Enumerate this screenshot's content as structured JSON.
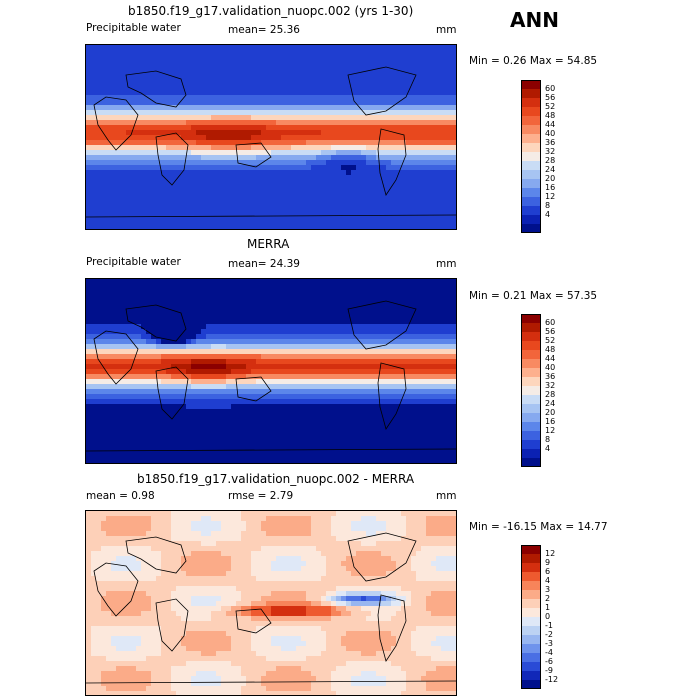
{
  "season": "ANN",
  "panels": [
    {
      "title": "b1850.f19_g17.validation_nuopc.002 (yrs 1-30)",
      "left_label": "Precipitable water",
      "center_label": "mean=   25.36",
      "right_label": "mm",
      "minmax": "Min =    0.26  Max =   54.85",
      "colorbar": {
        "labels": [
          "60",
          "56",
          "52",
          "48",
          "44",
          "40",
          "36",
          "32",
          "28",
          "24",
          "20",
          "16",
          "12",
          "8",
          "4"
        ],
        "colors": [
          "#8b0000",
          "#b01a00",
          "#d42f0f",
          "#e8481e",
          "#f2653b",
          "#f88a62",
          "#fdb08e",
          "#fdd6bd",
          "#f5ece6",
          "#c9dcf5",
          "#a7c4f2",
          "#86a9ef",
          "#5c86ea",
          "#3c62e0",
          "#1f3ed0",
          "#0b21b3",
          "#00108c"
        ]
      },
      "field_type": "model"
    },
    {
      "title": "MERRA",
      "left_label": "Precipitable water",
      "center_label": "mean=   24.39",
      "right_label": "mm",
      "minmax": "Min =    0.21  Max =   57.35",
      "colorbar": {
        "labels": [
          "60",
          "56",
          "52",
          "48",
          "44",
          "40",
          "36",
          "32",
          "28",
          "24",
          "20",
          "16",
          "12",
          "8",
          "4"
        ],
        "colors": [
          "#8b0000",
          "#b01a00",
          "#d42f0f",
          "#e8481e",
          "#f2653b",
          "#f88a62",
          "#fdb08e",
          "#fdd6bd",
          "#f5ece6",
          "#c9dcf5",
          "#a7c4f2",
          "#86a9ef",
          "#5c86ea",
          "#3c62e0",
          "#1f3ed0",
          "#0b21b3",
          "#00108c"
        ]
      },
      "field_type": "obs"
    },
    {
      "title": "b1850.f19_g17.validation_nuopc.002 - MERRA",
      "left_label": "mean =    0.98",
      "center_label": "rmse =    2.79",
      "right_label": "mm",
      "minmax": "Min =  -16.15  Max =   14.77",
      "colorbar": {
        "labels": [
          "12",
          "9",
          "6",
          "4",
          "3",
          "2",
          "1",
          "0",
          "-1",
          "-2",
          "-3",
          "-4",
          "-6",
          "-9",
          "-12"
        ],
        "colors": [
          "#8b0000",
          "#b01a00",
          "#d42f0f",
          "#ee5a2f",
          "#f7845a",
          "#fbab88",
          "#fdd0b8",
          "#fce8dc",
          "#dfe8f7",
          "#bcd2f3",
          "#98b6f0",
          "#6f93ec",
          "#4a6fe4",
          "#2a4bd6",
          "#1128b8",
          "#00108c"
        ]
      },
      "field_type": "diff"
    }
  ]
}
